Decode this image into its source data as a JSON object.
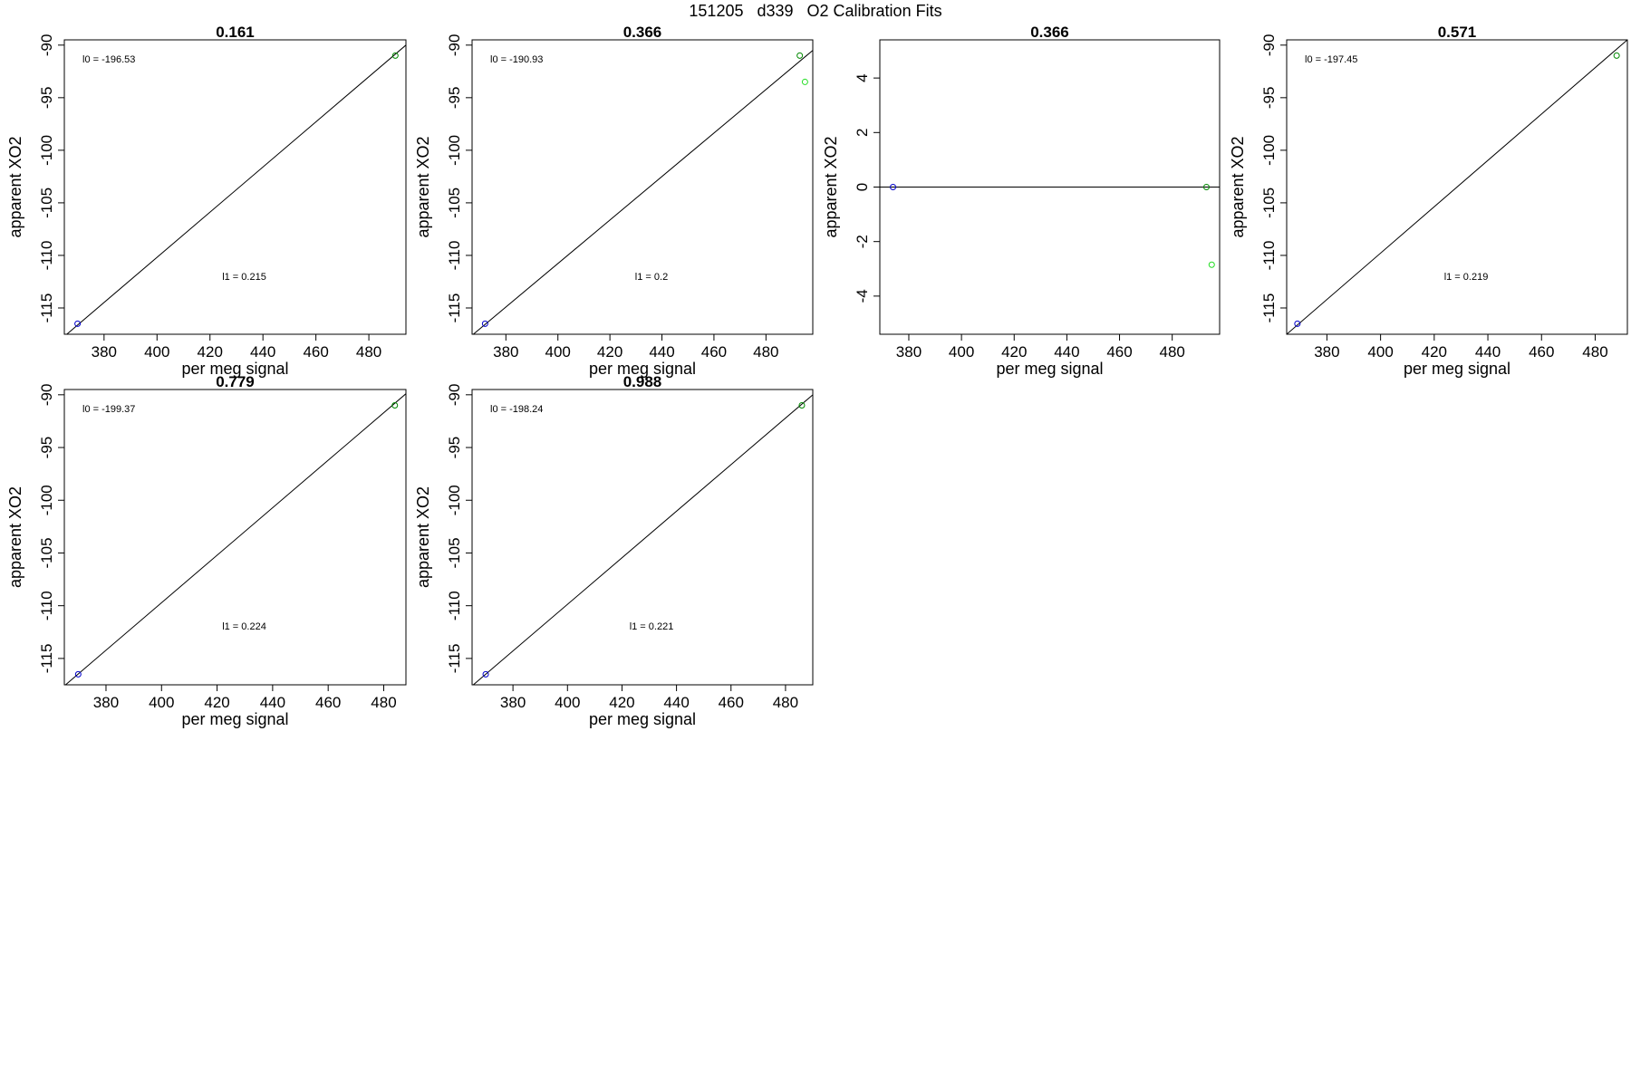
{
  "title": "151205   d339   O2 Calibration Fits",
  "chart_data": [
    {
      "type": "scatter",
      "title": "0.161",
      "xlabel": "per meg signal",
      "ylabel": "apparent XO2",
      "xlim": [
        365,
        494
      ],
      "ylim": [
        -117.5,
        -89.5
      ],
      "xticks": [
        380,
        400,
        420,
        440,
        460,
        480
      ],
      "yticks": [
        -115,
        -110,
        -105,
        -100,
        -95,
        -90
      ],
      "points": [
        {
          "x": 370,
          "y": -116.5,
          "color": "#0000cc"
        },
        {
          "x": 490,
          "y": -91,
          "color": "#008800"
        }
      ],
      "fit_line": {
        "x0": 365,
        "y0": -117.7,
        "x1": 494,
        "y1": -90.0
      },
      "annotations": {
        "l0": "l0 =  -196.53",
        "l1": "l1 =  0.215"
      }
    },
    {
      "type": "scatter",
      "title": "0.366",
      "xlabel": "per meg signal",
      "ylabel": "apparent XO2",
      "xlim": [
        367,
        498
      ],
      "ylim": [
        -117.5,
        -89.5
      ],
      "xticks": [
        380,
        400,
        420,
        440,
        460,
        480
      ],
      "yticks": [
        -115,
        -110,
        -105,
        -100,
        -95,
        -90
      ],
      "points": [
        {
          "x": 372,
          "y": -116.5,
          "color": "#0000cc"
        },
        {
          "x": 493,
          "y": -91,
          "color": "#008800"
        },
        {
          "x": 495,
          "y": -93.5,
          "color": "#22dd22"
        }
      ],
      "fit_line": {
        "x0": 367,
        "y0": -117.6,
        "x1": 498,
        "y1": -90.5
      },
      "annotations": {
        "l0": "l0 =  -190.93",
        "l1": "l1 =  0.2"
      }
    },
    {
      "type": "scatter",
      "title": "0.366",
      "xlabel": "per meg signal",
      "ylabel": "apparent XO2",
      "xlim": [
        369,
        498
      ],
      "ylim": [
        -5.4,
        5.4
      ],
      "xticks": [
        380,
        400,
        420,
        440,
        460,
        480
      ],
      "yticks": [
        -4,
        -2,
        0,
        2,
        4
      ],
      "points": [
        {
          "x": 374,
          "y": 0,
          "color": "#0000cc"
        },
        {
          "x": 493,
          "y": 0,
          "color": "#008800"
        },
        {
          "x": 495,
          "y": -2.85,
          "color": "#22dd22"
        }
      ],
      "fit_line": {
        "x0": 369,
        "y0": 0,
        "x1": 498,
        "y1": 0
      },
      "annotations": {
        "l0": "",
        "l1": ""
      }
    },
    {
      "type": "scatter",
      "title": "0.571",
      "xlabel": "per meg signal",
      "ylabel": "apparent XO2",
      "xlim": [
        365,
        492
      ],
      "ylim": [
        -117.5,
        -89.5
      ],
      "xticks": [
        380,
        400,
        420,
        440,
        460,
        480
      ],
      "yticks": [
        -115,
        -110,
        -105,
        -100,
        -95,
        -90
      ],
      "points": [
        {
          "x": 369,
          "y": -116.5,
          "color": "#0000cc"
        },
        {
          "x": 488,
          "y": -91,
          "color": "#008800"
        }
      ],
      "fit_line": {
        "x0": 365,
        "y0": -117.5,
        "x1": 492,
        "y1": -89.5
      },
      "annotations": {
        "l0": "l0 =  -197.45",
        "l1": "l1 =  0.219"
      }
    },
    {
      "type": "scatter",
      "title": "0.779",
      "xlabel": "per meg signal",
      "ylabel": "apparent XO2",
      "xlim": [
        365,
        488
      ],
      "ylim": [
        -117.5,
        -89.5
      ],
      "xticks": [
        380,
        400,
        420,
        440,
        460,
        480
      ],
      "yticks": [
        -115,
        -110,
        -105,
        -100,
        -95,
        -90
      ],
      "points": [
        {
          "x": 370,
          "y": -116.5,
          "color": "#0000cc"
        },
        {
          "x": 484,
          "y": -91,
          "color": "#008800"
        }
      ],
      "fit_line": {
        "x0": 365,
        "y0": -117.6,
        "x1": 488,
        "y1": -89.9
      },
      "annotations": {
        "l0": "l0 =  -199.37",
        "l1": "l1 =  0.224"
      }
    },
    {
      "type": "scatter",
      "title": "0.988",
      "xlabel": "per meg signal",
      "ylabel": "apparent XO2",
      "xlim": [
        365,
        490
      ],
      "ylim": [
        -117.5,
        -89.5
      ],
      "xticks": [
        380,
        400,
        420,
        440,
        460,
        480
      ],
      "yticks": [
        -115,
        -110,
        -105,
        -100,
        -95,
        -90
      ],
      "points": [
        {
          "x": 370,
          "y": -116.5,
          "color": "#0000cc"
        },
        {
          "x": 486,
          "y": -91,
          "color": "#008800"
        }
      ],
      "fit_line": {
        "x0": 365,
        "y0": -117.6,
        "x1": 490,
        "y1": -90.0
      },
      "annotations": {
        "l0": "l0 =  -198.24",
        "l1": "l1 =  0.221"
      }
    }
  ]
}
